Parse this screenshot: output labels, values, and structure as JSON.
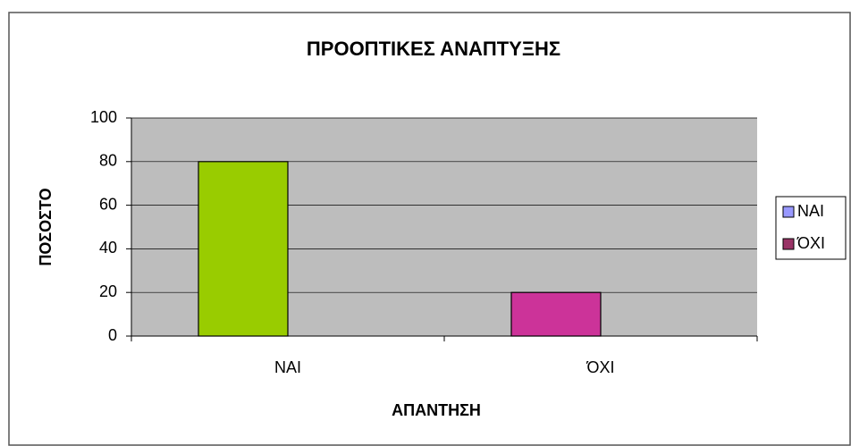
{
  "chart_data": {
    "type": "bar",
    "title": "ΠΡΟΟΠΤΙΚΕΣ ΑΝΑΠΤΥΞΗΣ",
    "x_label": "ΑΠΑΝΤΗΣΗ",
    "y_label": "ΠΟΣΟΣΤΟ",
    "categories": [
      "ΝΑΙ",
      "ΌΧΙ"
    ],
    "series": [
      {
        "name": "ΝΑΙ",
        "color": "#9999ff",
        "point_colors": [
          "#99cc00",
          "#cc3399"
        ],
        "values": [
          80,
          20
        ]
      },
      {
        "name": "ΌΧΙ",
        "color": "#993366",
        "values": [
          0,
          null
        ]
      }
    ],
    "ylim": [
      0,
      100
    ],
    "yticks": [
      0,
      20,
      40,
      60,
      80,
      100
    ],
    "grid": true,
    "legend": "right"
  }
}
